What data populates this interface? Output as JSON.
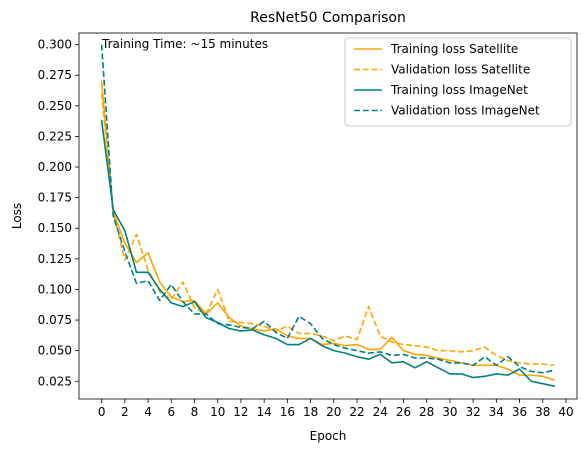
{
  "chart_data": {
    "type": "line",
    "title": "ResNet50 Comparison",
    "xlabel": "Epoch",
    "ylabel": "Loss",
    "xlim": [
      -1.95,
      40.95
    ],
    "ylim": [
      0.0105,
      0.3095
    ],
    "xticks": [
      0,
      2,
      4,
      6,
      8,
      10,
      12,
      14,
      16,
      18,
      20,
      22,
      24,
      26,
      28,
      30,
      32,
      34,
      36,
      38,
      40
    ],
    "yticks": [
      0.025,
      0.05,
      0.075,
      0.1,
      0.125,
      0.15,
      0.175,
      0.2,
      0.225,
      0.25,
      0.275,
      0.3
    ],
    "ytick_labels": [
      "0.025",
      "0.050",
      "0.075",
      "0.100",
      "0.125",
      "0.150",
      "0.175",
      "0.200",
      "0.225",
      "0.250",
      "0.275",
      "0.300"
    ],
    "grid": false,
    "legend_position": "top-right",
    "annotation": "Training Time: ~15 minutes",
    "x": [
      0,
      1,
      2,
      3,
      4,
      5,
      6,
      7,
      8,
      9,
      10,
      11,
      12,
      13,
      14,
      15,
      16,
      17,
      18,
      19,
      20,
      21,
      22,
      23,
      24,
      25,
      26,
      27,
      28,
      29,
      30,
      31,
      32,
      33,
      34,
      35,
      36,
      37,
      38,
      39
    ],
    "series": [
      {
        "name": "Training loss Satellite",
        "color": "#FFA500",
        "style": "solid",
        "values": [
          0.27,
          0.163,
          0.138,
          0.122,
          0.13,
          0.106,
          0.094,
          0.09,
          0.091,
          0.08,
          0.089,
          0.077,
          0.07,
          0.068,
          0.066,
          0.068,
          0.062,
          0.06,
          0.06,
          0.055,
          0.056,
          0.054,
          0.055,
          0.051,
          0.051,
          0.061,
          0.05,
          0.047,
          0.046,
          0.044,
          0.042,
          0.04,
          0.038,
          0.038,
          0.038,
          0.035,
          0.03,
          0.03,
          0.029,
          0.026
        ]
      },
      {
        "name": "Validation loss Satellite",
        "color": "#FFA500",
        "style": "dashed",
        "values": [
          0.26,
          0.163,
          0.124,
          0.145,
          0.116,
          0.098,
          0.092,
          0.106,
          0.085,
          0.08,
          0.1,
          0.074,
          0.073,
          0.072,
          0.07,
          0.066,
          0.07,
          0.064,
          0.064,
          0.062,
          0.058,
          0.062,
          0.059,
          0.086,
          0.062,
          0.057,
          0.055,
          0.054,
          0.053,
          0.05,
          0.05,
          0.049,
          0.05,
          0.053,
          0.046,
          0.042,
          0.04,
          0.039,
          0.039,
          0.038
        ]
      },
      {
        "name": "Training loss ImageNet",
        "color": "#008080",
        "style": "solid",
        "values": [
          0.238,
          0.165,
          0.148,
          0.114,
          0.114,
          0.1,
          0.089,
          0.086,
          0.09,
          0.077,
          0.073,
          0.068,
          0.066,
          0.067,
          0.063,
          0.06,
          0.055,
          0.055,
          0.06,
          0.054,
          0.05,
          0.048,
          0.045,
          0.043,
          0.047,
          0.04,
          0.041,
          0.036,
          0.041,
          0.036,
          0.031,
          0.031,
          0.028,
          0.029,
          0.031,
          0.03,
          0.035,
          0.025,
          0.023,
          0.021
        ]
      },
      {
        "name": "Validation loss ImageNet",
        "color": "#008080",
        "style": "dashed",
        "values": [
          0.3,
          0.16,
          0.131,
          0.105,
          0.107,
          0.091,
          0.104,
          0.09,
          0.08,
          0.08,
          0.072,
          0.071,
          0.069,
          0.068,
          0.074,
          0.065,
          0.06,
          0.078,
          0.072,
          0.06,
          0.055,
          0.052,
          0.05,
          0.048,
          0.049,
          0.046,
          0.047,
          0.044,
          0.044,
          0.043,
          0.04,
          0.04,
          0.038,
          0.045,
          0.038,
          0.045,
          0.037,
          0.033,
          0.032,
          0.034
        ]
      }
    ]
  }
}
